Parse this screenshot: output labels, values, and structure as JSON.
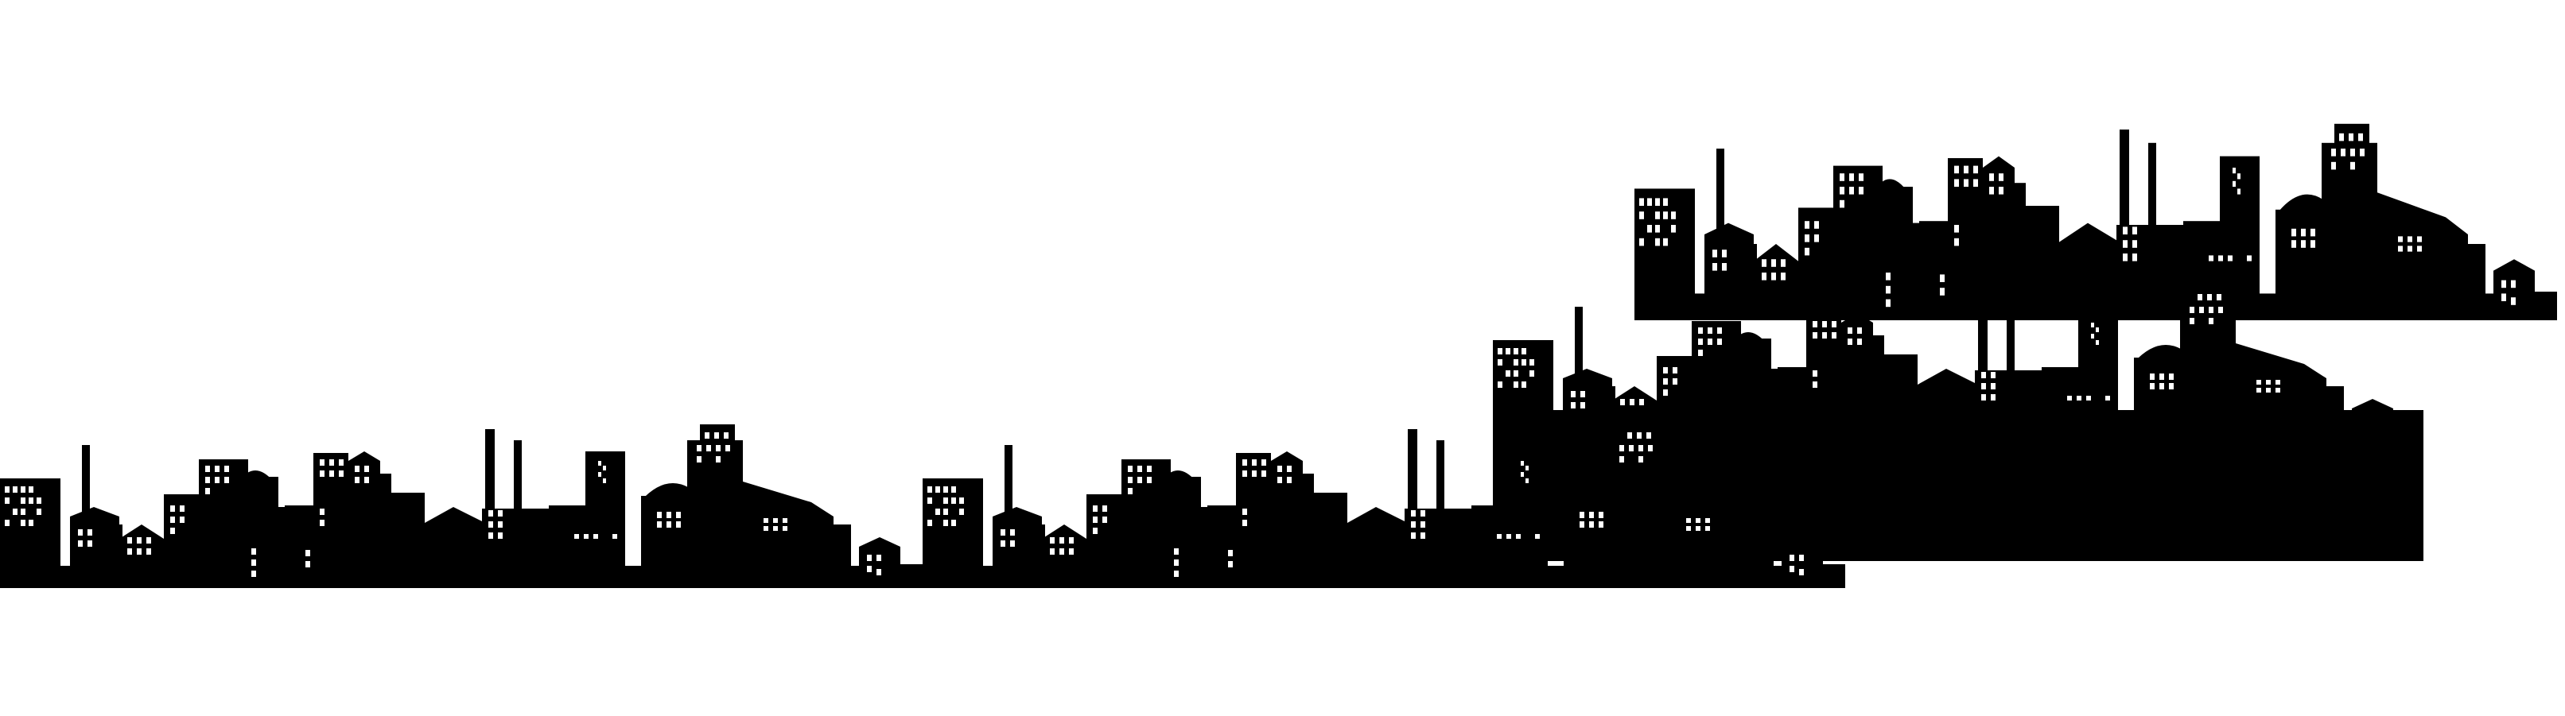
{
  "canvas": {
    "background": "#ffffff",
    "silhouette_color": "#000000",
    "window_color": "#ffffff"
  },
  "image": {
    "subject": "city-skyline-silhouette",
    "strips": [
      {
        "name": "skyline-strip-front",
        "repeats": 2
      },
      {
        "name": "skyline-strip-middle",
        "repeats": 1
      },
      {
        "name": "skyline-strip-back",
        "repeats": 1
      }
    ]
  }
}
